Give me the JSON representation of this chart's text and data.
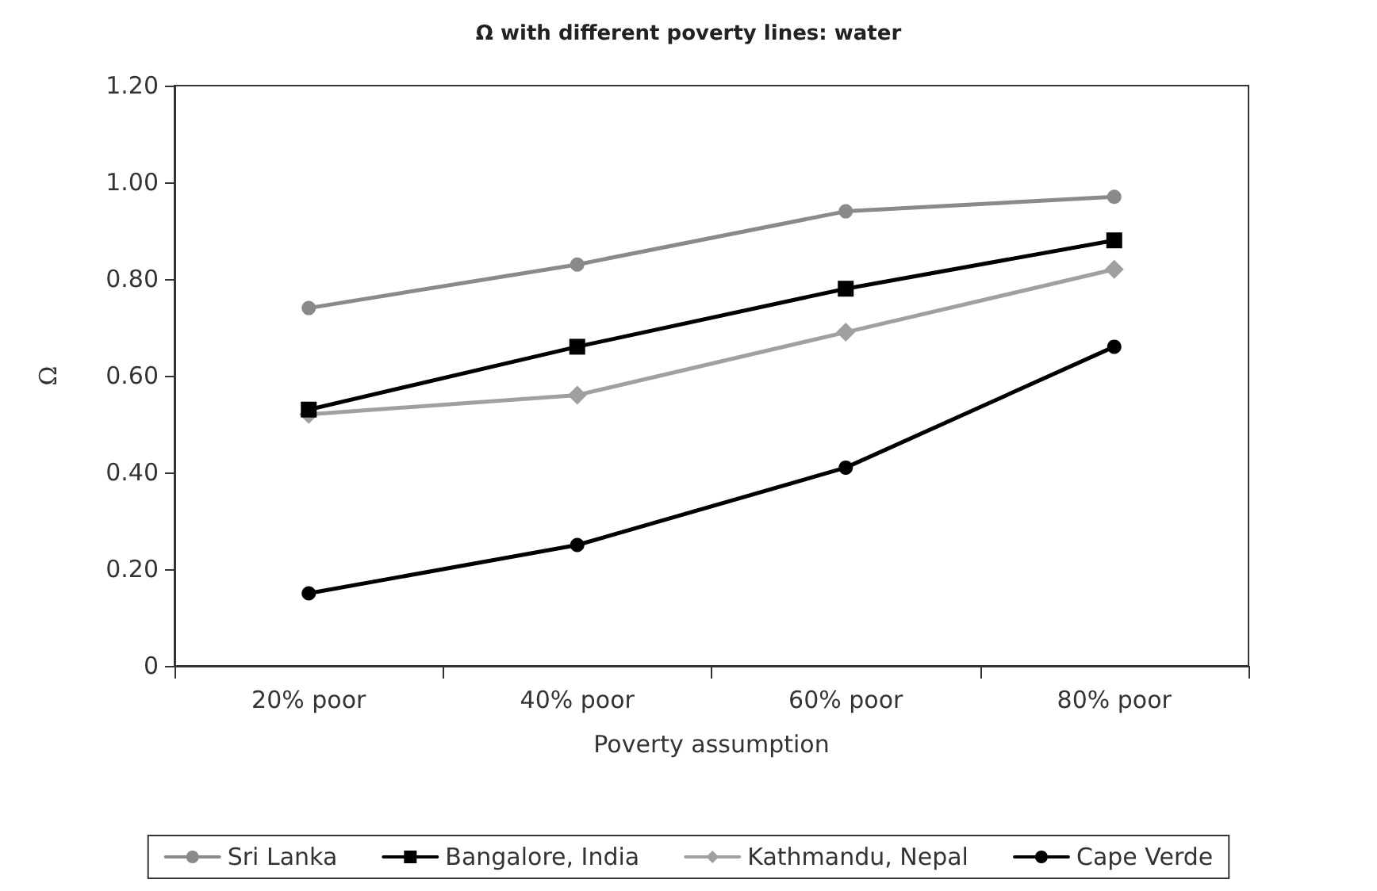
{
  "chart_data": {
    "type": "line",
    "title": "Ω with different poverty lines: water",
    "xlabel": "Poverty assumption",
    "ylabel": "Ω",
    "categories": [
      "20% poor",
      "40% poor",
      "60% poor",
      "80% poor"
    ],
    "series": [
      {
        "name": "Sri Lanka",
        "color": "#8a8a8a",
        "marker": "circle",
        "values": [
          0.74,
          0.83,
          0.94,
          0.97
        ]
      },
      {
        "name": "Bangalore, India",
        "color": "#000000",
        "marker": "square",
        "values": [
          0.53,
          0.66,
          0.78,
          0.88
        ]
      },
      {
        "name": "Kathmandu, Nepal",
        "color": "#a0a0a0",
        "marker": "diamond",
        "values": [
          0.52,
          0.56,
          0.69,
          0.82
        ]
      },
      {
        "name": "Cape Verde",
        "color": "#000000",
        "marker": "circle",
        "values": [
          0.15,
          0.25,
          0.41,
          0.66
        ]
      }
    ],
    "ylim": [
      0,
      1.2
    ],
    "yticks": [
      0,
      {
        "value": 0.2,
        "label": "0.20"
      },
      {
        "value": 0.4,
        "label": "0.40"
      },
      {
        "value": 0.6,
        "label": "0.60"
      },
      {
        "value": 0.8,
        "label": "0.80"
      },
      {
        "value": 1.0,
        "label": "1.00"
      },
      {
        "value": 1.2,
        "label": "1.20"
      }
    ],
    "grid": false,
    "legend": "bottom",
    "line_style": "solid"
  }
}
